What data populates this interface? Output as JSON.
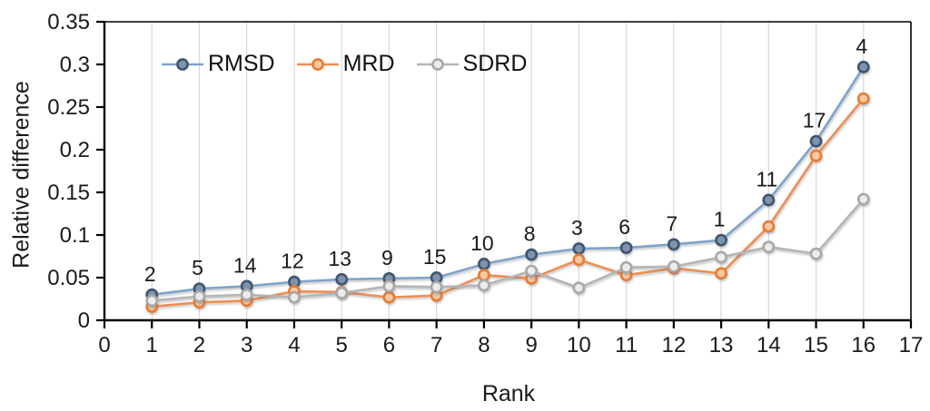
{
  "chart_data": {
    "type": "line",
    "title": "",
    "xlabel": "Rank",
    "ylabel": "Relative difference",
    "xlim": [
      0,
      17
    ],
    "ylim": [
      0,
      0.35
    ],
    "x_ticks": [
      0,
      1,
      2,
      3,
      4,
      5,
      6,
      7,
      8,
      9,
      10,
      11,
      12,
      13,
      14,
      15,
      16,
      17
    ],
    "x_tick_labels": [
      "0",
      "1",
      "2",
      "3",
      "4",
      "5",
      "6",
      "7",
      "8",
      "9",
      "10",
      "11",
      "12",
      "13",
      "14",
      "15",
      "16",
      "17"
    ],
    "y_ticks": [
      0,
      0.05,
      0.1,
      0.15,
      0.2,
      0.25,
      0.3,
      0.35
    ],
    "y_tick_labels": [
      "0",
      "0.05",
      "0.1",
      "0.15",
      "0.2",
      "0.25",
      "0.3",
      "0.35"
    ],
    "grid": "vertical-gridlines-only",
    "gridline_color": "#d9d9d9",
    "axis_color": "#000000",
    "legend_position": "inside-top-left",
    "x": [
      1,
      2,
      3,
      4,
      5,
      6,
      7,
      8,
      9,
      10,
      11,
      12,
      13,
      14,
      15,
      16
    ],
    "point_labels": [
      "2",
      "5",
      "14",
      "12",
      "13",
      "9",
      "15",
      "10",
      "8",
      "3",
      "6",
      "7",
      "1",
      "11",
      "17",
      "4"
    ],
    "series": [
      {
        "name": "RMSD",
        "line_color": "#7fa3cc",
        "marker_stroke": "#3f5570",
        "marker_fill": "#8093ad",
        "values": [
          0.03,
          0.037,
          0.04,
          0.045,
          0.048,
          0.049,
          0.05,
          0.066,
          0.077,
          0.084,
          0.085,
          0.089,
          0.094,
          0.141,
          0.21,
          0.297
        ]
      },
      {
        "name": "MRD",
        "line_color": "#ee8e52",
        "marker_stroke": "#e97c31",
        "marker_fill": "#f6c9a4",
        "values": [
          0.016,
          0.021,
          0.023,
          0.034,
          0.033,
          0.027,
          0.029,
          0.053,
          0.049,
          0.071,
          0.053,
          0.061,
          0.055,
          0.11,
          0.193,
          0.26
        ]
      },
      {
        "name": "SDRD",
        "line_color": "#b5b5b5",
        "marker_stroke": "#a8a8a8",
        "marker_fill": "#ececec",
        "values": [
          0.023,
          0.028,
          0.03,
          0.027,
          0.032,
          0.04,
          0.039,
          0.041,
          0.058,
          0.038,
          0.062,
          0.063,
          0.074,
          0.086,
          0.078,
          0.142
        ]
      }
    ]
  }
}
